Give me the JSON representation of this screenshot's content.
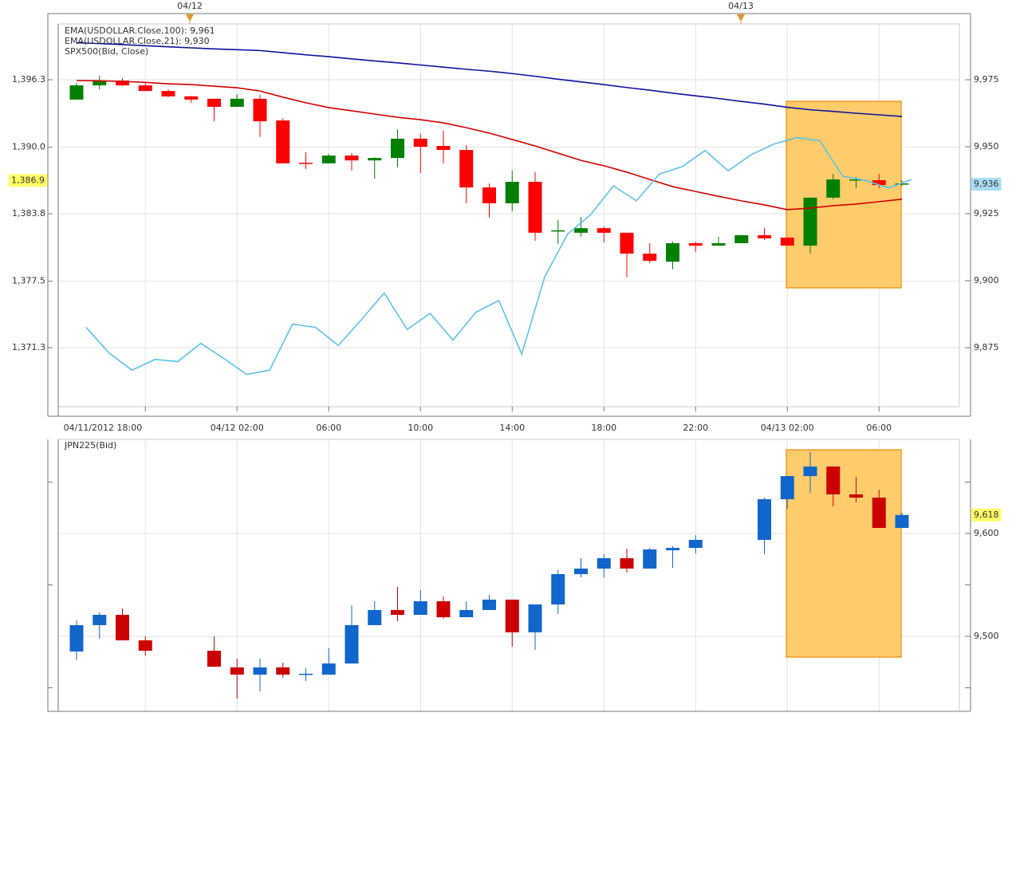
{
  "chart_data": [
    {
      "type": "candlestick",
      "categories": [
        null,
        null,
        null,
        "04/11/2012 18:00",
        null,
        null,
        null,
        "04/12 02:00",
        null,
        null,
        null,
        "06:00",
        null,
        null,
        null,
        "10:00",
        null,
        null,
        null,
        "14:00",
        null,
        null,
        null,
        "18:00",
        null,
        null,
        null,
        "22:00",
        null,
        null,
        null,
        "04/13 02:00",
        null,
        null,
        null,
        "06:00",
        null
      ],
      "candle_axis": "y2",
      "up_color": "#008000",
      "down_color": "#ff0000",
      "open": [
        9967.6,
        9972.9,
        9974.7,
        9972.9,
        9970.8,
        9968.8,
        9967.9,
        9964.9,
        9967.9,
        9959.8,
        9944.0,
        9943.8,
        9946.7,
        9944.9,
        9945.8,
        9953.0,
        9950.3,
        9948.8,
        9934.8,
        9928.9,
        9936.9,
        9918.5,
        9917.9,
        9919.6,
        9917.9,
        9910.1,
        9907.1,
        9914.0,
        9913.1,
        9914.0,
        9917.0,
        9916.1,
        9913.1,
        9931.0,
        9937.5,
        9937.5,
        9936.3
      ],
      "high": [
        9973.8,
        9976.5,
        9975.6,
        9974.1,
        9971.4,
        9969.0,
        9967.9,
        9969.6,
        9969.3,
        9960.7,
        9947.9,
        9947.3,
        9947.6,
        9946.1,
        9956.5,
        9954.8,
        9956.0,
        9950.6,
        9936.3,
        9941.1,
        9940.5,
        9922.6,
        9923.8,
        9920.2,
        9917.9,
        9914.0,
        9914.6,
        9914.6,
        9916.4,
        9917.0,
        9919.6,
        9916.1,
        9931.0,
        9939.9,
        9938.7,
        9939.9,
        9937.5
      ],
      "low": [
        9967.6,
        9971.4,
        9972.6,
        9970.8,
        9968.5,
        9966.4,
        9959.5,
        9964.9,
        9953.6,
        9943.8,
        9941.7,
        9943.8,
        9941.1,
        9938.1,
        9942.3,
        9940.2,
        9943.8,
        9928.9,
        9923.5,
        9925.9,
        9914.9,
        9913.7,
        9916.4,
        9914.3,
        9901.2,
        9906.5,
        9904.2,
        9910.7,
        9913.1,
        9914.0,
        9915.2,
        9913.1,
        9910.1,
        9930.4,
        9934.5,
        9934.5,
        9935.4
      ],
      "close": [
        9972.9,
        9974.7,
        9972.9,
        9970.8,
        9968.8,
        9967.6,
        9964.9,
        9967.9,
        9959.5,
        9943.8,
        9943.8,
        9946.7,
        9944.9,
        9945.8,
        9953.0,
        9950.0,
        9948.8,
        9934.8,
        9928.9,
        9936.9,
        9917.9,
        9918.8,
        9919.6,
        9917.9,
        9910.1,
        9907.4,
        9914.0,
        9913.1,
        9914.0,
        9917.0,
        9915.8,
        9913.1,
        9931.0,
        9937.8,
        9937.8,
        9935.7,
        9936.3
      ],
      "series": [
        {
          "name": "EMA(USDOLLAR.Close,100): 9,961",
          "type": "line",
          "axis": "y2",
          "color": "#0a14a0",
          "values": [
            9988.8,
            9988.5,
            9988.1,
            9987.7,
            9987.3,
            9986.9,
            9986.5,
            9986.2,
            9985.9,
            9985.1,
            9984.3,
            9983.6,
            9982.8,
            9982.0,
            9981.3,
            9980.5,
            9979.7,
            9978.9,
            9978.2,
            9977.3,
            9976.3,
            9975.2,
            9974.2,
            9973.2,
            9972.1,
            9971.1,
            9970.0,
            9969.0,
            9968.0,
            9966.9,
            9965.9,
            9964.7,
            9963.8,
            9963.2,
            9962.5,
            9961.9,
            9961.3
          ]
        },
        {
          "name": "EMA(USDOLLAR.Close,21): 9,930",
          "type": "line",
          "axis": "y2",
          "color": "#d40000",
          "values": [
            9974.7,
            9974.6,
            9974.4,
            9974.0,
            9973.5,
            9973.2,
            9972.6,
            9972.0,
            9970.8,
            9968.5,
            9966.4,
            9964.6,
            9963.4,
            9962.2,
            9961.0,
            9960.1,
            9958.9,
            9957.1,
            9955.1,
            9952.7,
            9950.3,
            9947.6,
            9944.9,
            9942.9,
            9940.5,
            9937.8,
            9935.1,
            9933.3,
            9931.5,
            9929.8,
            9928.3,
            9926.5,
            9927.1,
            9928.0,
            9928.6,
            9929.5,
            9930.4
          ]
        },
        {
          "name": "SPX500(Bid, Close)",
          "type": "line",
          "axis": "y",
          "color": "#5bc2ea",
          "values": [
            1373.2,
            1370.8,
            1369.2,
            1370.2,
            1370.0,
            1371.7,
            1370.3,
            1368.8,
            1369.2,
            1373.5,
            1373.2,
            1371.5,
            1373.9,
            1376.4,
            1373.0,
            1374.5,
            1372.0,
            1374.6,
            1375.7,
            1370.7,
            1377.9,
            1381.9,
            1383.7,
            1386.4,
            1385.0,
            1387.5,
            1388.2,
            1389.7,
            1387.8,
            1389.3,
            1390.3,
            1390.9,
            1390.6,
            1387.3,
            1386.9,
            1386.2,
            1387.0
          ]
        }
      ],
      "ylim": [
        1365.79,
        1401.51
      ],
      "yticks": [
        {
          "value": 1371.3,
          "label": "1,371.3"
        },
        {
          "value": 1377.5,
          "label": "1,377.5"
        },
        {
          "value": 1383.8,
          "label": "1,383.8"
        },
        {
          "value": 1390.0,
          "label": "1,390.0"
        },
        {
          "value": 1396.3,
          "label": "1,396.3"
        }
      ],
      "y2lim": [
        9852.98,
        9995.83
      ],
      "y2ticks": [
        {
          "value": 9875,
          "label": "9,875"
        },
        {
          "value": 9900,
          "label": "9,900"
        },
        {
          "value": 9925,
          "label": "9,925"
        },
        {
          "value": 9950,
          "label": "9,950"
        },
        {
          "value": 9975,
          "label": "9,975"
        }
      ],
      "last_labels": [
        {
          "value": 1386.9,
          "label": "1,386.9",
          "axis": "y",
          "color": "#ffff66"
        },
        {
          "value": 9936,
          "label": "9,936",
          "axis": "y2",
          "color": "#a9dcf4"
        }
      ],
      "date_markers": [
        "04/12",
        "04/13"
      ],
      "grid": true
    },
    {
      "type": "candlestick",
      "name": "JPN225(Bid)",
      "name_color": "#2f62a8",
      "candle_axis": "y",
      "y_axis_side": "right",
      "up_color": "#1166cc",
      "down_color": "#cc0000",
      "open": [
        9485.3,
        9510.9,
        9520.9,
        9496.1,
        null,
        null,
        9486.0,
        9469.8,
        9462.8,
        9469.8,
        9463.6,
        9462.8,
        9473.6,
        9510.9,
        9525.6,
        9520.9,
        9534.1,
        9518.6,
        9525.6,
        9535.7,
        9503.9,
        9531.0,
        9560.5,
        9565.9,
        9576.0,
        9565.9,
        9583.7,
        9586.0,
        null,
        null,
        9593.8,
        9633.3,
        9655.8,
        9665.1,
        9638.0,
        9634.9,
        9605.4
      ],
      "high": [
        9515.5,
        9523.3,
        9527.1,
        9500.0,
        null,
        null,
        9500.0,
        9478.3,
        9478.3,
        9474.4,
        9469.0,
        9488.4,
        9530.2,
        9534.1,
        9548.1,
        9545.0,
        9538.8,
        9534.1,
        9540.3,
        9535.7,
        9531.0,
        9564.3,
        9576.0,
        9579.8,
        9585.3,
        9586.0,
        9587.6,
        9598.4,
        null,
        null,
        9634.9,
        9655.8,
        9679.1,
        9665.1,
        9655.0,
        9642.6,
        9620.2
      ],
      "low": [
        9476.7,
        9497.7,
        9496.1,
        9481.4,
        null,
        null,
        9470.5,
        9439.5,
        9446.5,
        9459.7,
        9456.6,
        9462.8,
        9473.6,
        9510.9,
        9514.7,
        9520.9,
        9517.1,
        9518.6,
        9525.6,
        9489.9,
        9486.8,
        9521.7,
        9557.4,
        9557.4,
        9562.0,
        9565.9,
        9566.7,
        9580.6,
        null,
        null,
        9579.8,
        9624.0,
        9639.5,
        9626.4,
        9630.2,
        9605.4,
        9605.4
      ],
      "close": [
        9510.9,
        9520.9,
        9496.1,
        9486.0,
        null,
        null,
        9470.5,
        9462.8,
        9469.8,
        9462.8,
        9463.6,
        9473.6,
        9510.9,
        9525.6,
        9520.9,
        9534.1,
        9518.6,
        9525.6,
        9535.7,
        9503.9,
        9531.0,
        9560.5,
        9565.9,
        9576.0,
        9565.9,
        9584.5,
        9586.0,
        9593.8,
        null,
        null,
        9633.3,
        9655.8,
        9665.1,
        9638.0,
        9634.9,
        9605.4,
        9618
      ],
      "ylim": [
        9427.1,
        9691.5
      ],
      "yticks": [
        {
          "value": 9500,
          "label": "9,500"
        },
        {
          "value": 9600,
          "label": "9,600"
        }
      ],
      "minor_yticks": [
        9450,
        9550,
        9650
      ],
      "last_labels": [
        {
          "value": 9618,
          "label": "9,618",
          "axis": "y",
          "color": "#ffff66"
        }
      ],
      "grid": true
    }
  ]
}
